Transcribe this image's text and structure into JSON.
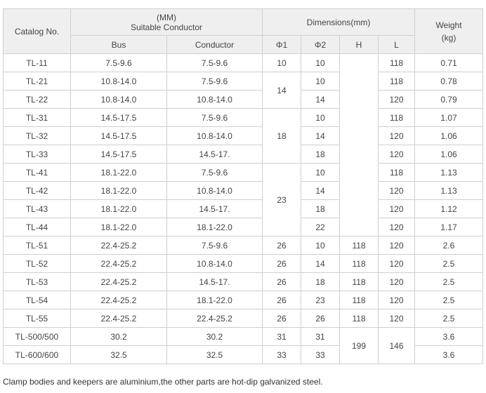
{
  "header": {
    "catalog": "Catalog No.",
    "suitable_top": "(MM)",
    "suitable": "Suitable Conductor",
    "dimensions": "Dimensions(mm)",
    "weight": "Weight",
    "weight_unit": "(kg)",
    "bus": "Bus",
    "conductor": "Conductor",
    "phi1": "Φ1",
    "phi2": "Φ2",
    "h": "H",
    "l": "L"
  },
  "rows": [
    {
      "cat": "TL-11",
      "bus": "7.5-9.6",
      "cond": "7.5-9.6",
      "phi1": "10",
      "phi2": "10",
      "h": "",
      "l": "118",
      "w": "0.71"
    },
    {
      "cat": "TL-21",
      "bus": "10.8-14.0",
      "cond": "7.5-9.6",
      "phi1": "14",
      "phi2": "10",
      "l": "118",
      "w": "0.78"
    },
    {
      "cat": "TL-22",
      "bus": "10.8-14.0",
      "cond": "10.8-14.0",
      "phi2": "14",
      "l": "120",
      "w": "0.79"
    },
    {
      "cat": "TL-31",
      "bus": "14.5-17.5",
      "cond": "7.5-9.6",
      "phi1": "18",
      "phi2": "10",
      "l": "118",
      "w": "1.07"
    },
    {
      "cat": "TL-32",
      "bus": "14.5-17.5",
      "cond": "10.8-14.0",
      "phi2": "14",
      "l": "120",
      "w": "1.06"
    },
    {
      "cat": "TL-33",
      "bus": "14.5-17.5",
      "cond": "14.5-17.",
      "phi2": "18",
      "l": "120",
      "w": "1.06"
    },
    {
      "cat": "TL-41",
      "bus": "18.1-22.0",
      "cond": "7.5-9.6",
      "phi1": "23",
      "phi2": "10",
      "l": "118",
      "w": "1.13"
    },
    {
      "cat": "TL-42",
      "bus": "18.1-22.0",
      "cond": "10.8-14.0",
      "phi2": "14",
      "l": "120",
      "w": "1.13"
    },
    {
      "cat": "TL-43",
      "bus": "18.1-22.0",
      "cond": "14.5-17.",
      "phi2": "18",
      "l": "120",
      "w": "1.12"
    },
    {
      "cat": "TL-44",
      "bus": "18.1-22.0",
      "cond": "18.1-22.0",
      "phi2": "22",
      "l": "120",
      "w": "1.17"
    },
    {
      "cat": "TL-51",
      "bus": "22.4-25.2",
      "cond": "7.5-9.6",
      "phi1": "26",
      "phi2": "10",
      "h": "118",
      "l": "120",
      "w": "2.6"
    },
    {
      "cat": "TL-52",
      "bus": "22.4-25.2",
      "cond": "10.8-14.0",
      "phi1": "26",
      "phi2": "14",
      "h": "118",
      "l": "120",
      "w": "2.5"
    },
    {
      "cat": "TL-53",
      "bus": "22.4-25.2",
      "cond": "14.5-17.",
      "phi1": "26",
      "phi2": "18",
      "h": "118",
      "l": "120",
      "w": "2.5"
    },
    {
      "cat": "TL-54",
      "bus": "22.4-25.2",
      "cond": "18.1-22.0",
      "phi1": "26",
      "phi2": "23",
      "h": "118",
      "l": "120",
      "w": "2.5"
    },
    {
      "cat": "TL-55",
      "bus": "22.4-25.2",
      "cond": "22.4-25.2",
      "phi1": "26",
      "phi2": "26",
      "h": "118",
      "l": "120",
      "w": "2.5"
    },
    {
      "cat": "TL-500/500",
      "bus": "30.2",
      "cond": "30.2",
      "phi1": "31",
      "phi2": "31",
      "h": "199",
      "l": "146",
      "w": "3.6"
    },
    {
      "cat": "TL-600/600",
      "bus": "32.5",
      "cond": "32.5",
      "phi1": "33",
      "phi2": "33",
      "w": "3.6"
    }
  ],
  "note": "Clamp bodies and keepers are aluminium,the other parts are hot-dip galvanized steel."
}
